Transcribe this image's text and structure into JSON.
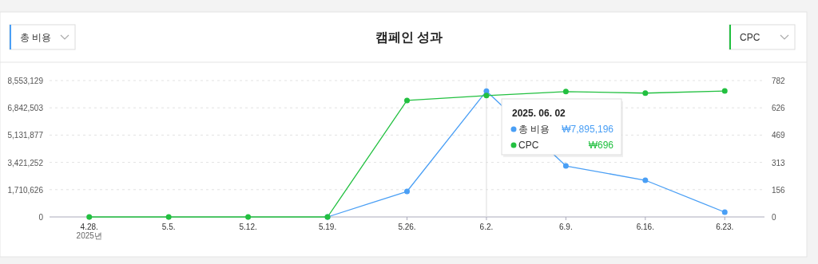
{
  "chart_data": {
    "type": "line",
    "title": "캠페인 성과",
    "ylabel": "총 비용",
    "y2label": "CPC",
    "legend_title": "2025. 06. 02",
    "categories": [
      "4.28.",
      "5.5.",
      "5.12.",
      "5.19.",
      "5.26.",
      "6.2.",
      "6.9.",
      "6.16.",
      "6.23."
    ],
    "series": [
      {
        "name": "총 비용",
        "color": "#4a9ff5",
        "values": [
          null,
          null,
          null,
          0,
          1600000,
          7895196,
          3200000,
          2300000,
          300000
        ]
      },
      {
        "name": "CPC",
        "color": "#22c040",
        "axis": "y2",
        "values": [
          0,
          0,
          0,
          0,
          668,
          696,
          719,
          710,
          722
        ]
      }
    ],
    "ylim": [
      0,
      8553129
    ],
    "yticks": [
      {
        "value": 0,
        "label": "0"
      },
      {
        "value": 1710626,
        "label": "1,710,626"
      },
      {
        "value": 3421252,
        "label": "3,421,252"
      },
      {
        "value": 5131877,
        "label": "5,131,877"
      },
      {
        "value": 6842503,
        "label": "6,842,503"
      },
      {
        "value": 8553129,
        "label": "8,553,129"
      }
    ],
    "y2lim": [
      0,
      782
    ],
    "y2ticks": [
      0,
      156,
      313,
      469,
      626,
      782
    ],
    "ref_lines": [
      {
        "axis": "x",
        "value": "6.2.",
        "color": "#dddddd"
      }
    ],
    "annotations": [
      "2025년",
      "₩7,895,196",
      "₩696"
    ],
    "grid": "y",
    "legend": "top",
    "marker": "circle",
    "line_style": "solid"
  }
}
